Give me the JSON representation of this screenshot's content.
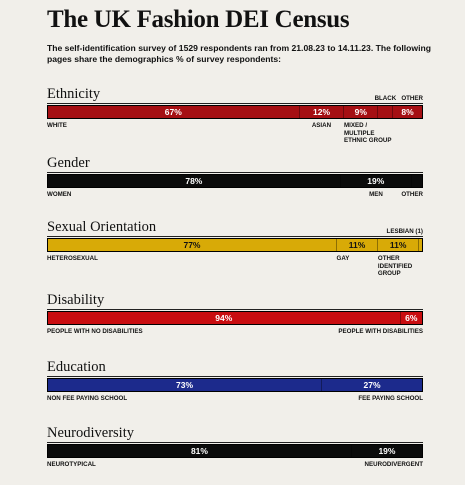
{
  "title": "The UK Fashion DEI Census",
  "subtitle": "The self-identification survey of 1529 respondents ran from 21.08.23 to 14.11.23. The following pages share the demographics % of survey respondents:",
  "chart_data": [
    {
      "type": "bar",
      "title": "Ethnicity",
      "color": "#a50f13",
      "segments": [
        {
          "label": "White",
          "value": 67,
          "value_label": "67%"
        },
        {
          "label": "Asian",
          "value": 12,
          "value_label": "12%"
        },
        {
          "label": "Mixed / Multiple Ethnic Group",
          "value": 9,
          "value_label": "9%"
        },
        {
          "label": "Black",
          "value": 4,
          "value_label": ""
        },
        {
          "label": "Other",
          "value": 8,
          "value_label": "8%"
        }
      ]
    },
    {
      "type": "bar",
      "title": "Gender",
      "color": "#0b0b0b",
      "segments": [
        {
          "label": "Women",
          "value": 78,
          "value_label": "78%"
        },
        {
          "label": "Men",
          "value": 19,
          "value_label": "19%"
        },
        {
          "label": "Other",
          "value": 3,
          "value_label": ""
        }
      ]
    },
    {
      "type": "bar",
      "title": "Sexual Orientation",
      "color": "#d8aa07",
      "segments": [
        {
          "label": "Heterosexual",
          "value": 77,
          "value_label": "77%"
        },
        {
          "label": "Gay",
          "value": 11,
          "value_label": "11%"
        },
        {
          "label": "Other Identified Group",
          "value": 11,
          "value_label": "11%"
        },
        {
          "label": "Lesbian (1)",
          "value": 1,
          "value_label": ""
        }
      ]
    },
    {
      "type": "bar",
      "title": "Disability",
      "color": "#c90d10",
      "segments": [
        {
          "label": "People with no disabilities",
          "value": 94,
          "value_label": "94%"
        },
        {
          "label": "People with disabilities",
          "value": 6,
          "value_label": "6%"
        }
      ]
    },
    {
      "type": "bar",
      "title": "Education",
      "color": "#1c2a8c",
      "segments": [
        {
          "label": "Non fee paying school",
          "value": 73,
          "value_label": "73%"
        },
        {
          "label": "Fee paying school",
          "value": 27,
          "value_label": "27%"
        }
      ]
    },
    {
      "type": "bar",
      "title": "Neurodiversity",
      "color": "#0b0b0b",
      "segments": [
        {
          "label": "Neurotypical",
          "value": 81,
          "value_label": "81%"
        },
        {
          "label": "Neurodivergent",
          "value": 19,
          "value_label": "19%"
        }
      ]
    }
  ],
  "colors": {
    "background": "#f1efea",
    "segment_text_light": "#ffffff",
    "segment_text_dark": "#111111"
  }
}
